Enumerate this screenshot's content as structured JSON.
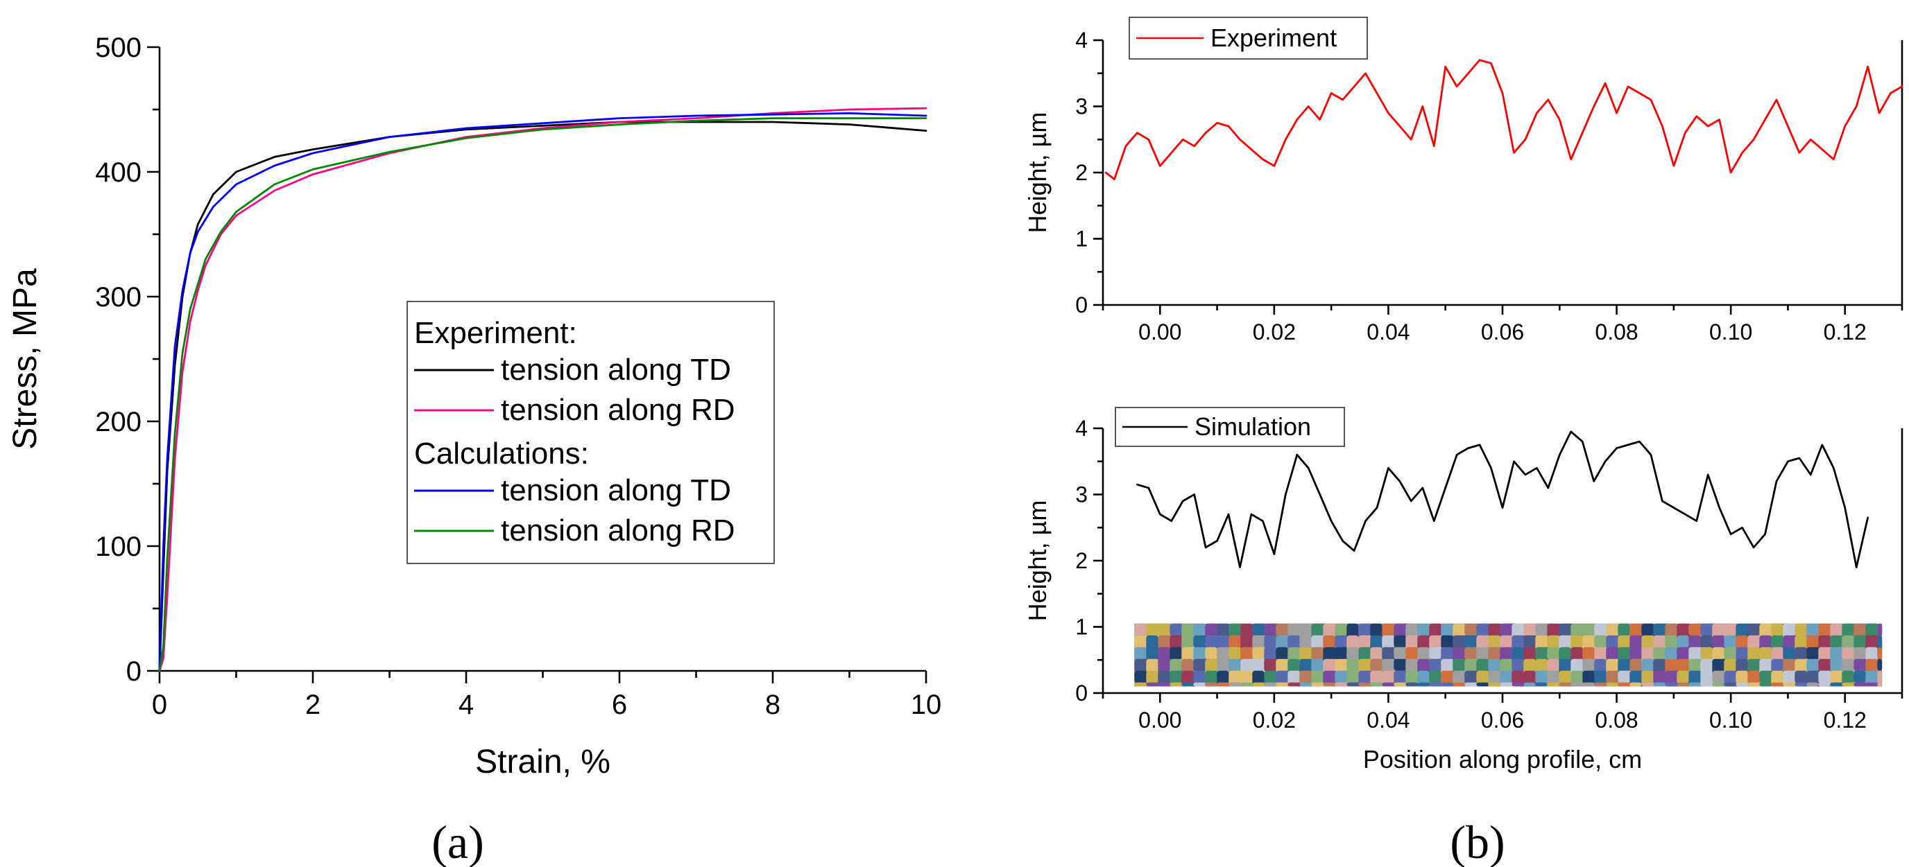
{
  "chart_data": [
    {
      "type": "line",
      "panel_label": "(a)",
      "xlabel": "Strain, %",
      "ylabel": "Stress, MPa",
      "xlim": [
        0,
        10
      ],
      "ylim": [
        0,
        500
      ],
      "xticks": [
        "0",
        "2",
        "4",
        "6",
        "8",
        "10"
      ],
      "yticks": [
        "0",
        "100",
        "200",
        "300",
        "400",
        "500"
      ],
      "legend": {
        "placement": "center-right",
        "groups": [
          {
            "heading": "Experiment:",
            "entries": [
              "tension along TD",
              "tension along RD"
            ]
          },
          {
            "heading": "Calculations:",
            "entries": [
              "tension along TD",
              "tension along RD"
            ]
          }
        ]
      },
      "series": [
        {
          "name": "Experiment: tension along TD",
          "color": "#000000",
          "x": [
            0,
            0.05,
            0.1,
            0.2,
            0.3,
            0.4,
            0.5,
            0.7,
            1.0,
            1.5,
            2,
            3,
            4,
            5,
            6,
            7,
            8,
            9,
            10
          ],
          "y": [
            0,
            80,
            160,
            245,
            300,
            335,
            358,
            382,
            400,
            412,
            418,
            428,
            434,
            437,
            440,
            440,
            440,
            438,
            433
          ]
        },
        {
          "name": "Experiment: tension along RD",
          "color": "#ff0088",
          "x": [
            0,
            0.05,
            0.1,
            0.2,
            0.3,
            0.4,
            0.5,
            0.6,
            0.8,
            1.0,
            1.5,
            2,
            3,
            4,
            5,
            6,
            7,
            8,
            9,
            10
          ],
          "y": [
            0,
            10,
            60,
            170,
            240,
            280,
            305,
            325,
            350,
            365,
            385,
            398,
            415,
            428,
            435,
            440,
            443,
            447,
            450,
            451
          ]
        },
        {
          "name": "Calculations: tension along TD",
          "color": "#0000ff",
          "x": [
            0,
            0.05,
            0.1,
            0.2,
            0.3,
            0.4,
            0.5,
            0.7,
            1.0,
            1.5,
            2,
            3,
            4,
            5,
            6,
            7,
            8,
            9,
            10
          ],
          "y": [
            0,
            100,
            170,
            260,
            305,
            335,
            352,
            372,
            390,
            405,
            415,
            428,
            435,
            439,
            443,
            445,
            446,
            447,
            445
          ]
        },
        {
          "name": "Calculations: tension along RD",
          "color": "#008800",
          "x": [
            0,
            0.05,
            0.1,
            0.2,
            0.3,
            0.4,
            0.5,
            0.6,
            0.8,
            1.0,
            1.5,
            2,
            3,
            4,
            5,
            6,
            7,
            8,
            9,
            10
          ],
          "y": [
            0,
            20,
            90,
            190,
            255,
            290,
            310,
            330,
            352,
            368,
            390,
            402,
            416,
            427,
            434,
            438,
            441,
            443,
            443,
            443
          ]
        }
      ]
    },
    {
      "type": "line",
      "panel_label": "(b)",
      "xlabel": "",
      "ylabel": "Height, µm",
      "xlim": [
        -0.01,
        0.13
      ],
      "ylim": [
        0,
        4
      ],
      "xticks": [
        "0.00",
        "0.02",
        "0.04",
        "0.06",
        "0.08",
        "0.10",
        "0.12"
      ],
      "yticks": [
        "0",
        "1",
        "2",
        "3",
        "4"
      ],
      "legend": {
        "placement": "top-left",
        "entries": [
          "Experiment"
        ]
      },
      "series": [
        {
          "name": "Experiment",
          "color": "#ff0000",
          "x": [
            -0.0095,
            -0.008,
            -0.006,
            -0.004,
            -0.002,
            0.0,
            0.002,
            0.004,
            0.006,
            0.008,
            0.01,
            0.012,
            0.014,
            0.016,
            0.018,
            0.02,
            0.022,
            0.024,
            0.026,
            0.028,
            0.03,
            0.032,
            0.034,
            0.036,
            0.038,
            0.04,
            0.042,
            0.044,
            0.046,
            0.048,
            0.05,
            0.052,
            0.054,
            0.056,
            0.058,
            0.06,
            0.062,
            0.064,
            0.066,
            0.068,
            0.07,
            0.072,
            0.074,
            0.076,
            0.078,
            0.08,
            0.082,
            0.084,
            0.086,
            0.088,
            0.09,
            0.092,
            0.094,
            0.096,
            0.098,
            0.1,
            0.102,
            0.104,
            0.106,
            0.108,
            0.11,
            0.112,
            0.114,
            0.116,
            0.118,
            0.12,
            0.122,
            0.124,
            0.126,
            0.128,
            0.13
          ],
          "y": [
            2.0,
            1.9,
            2.4,
            2.6,
            2.5,
            2.1,
            2.3,
            2.5,
            2.4,
            2.6,
            2.75,
            2.7,
            2.5,
            2.35,
            2.2,
            2.1,
            2.5,
            2.8,
            3.0,
            2.8,
            3.2,
            3.1,
            3.3,
            3.5,
            3.2,
            2.9,
            2.7,
            2.5,
            3.0,
            2.4,
            3.6,
            3.3,
            3.5,
            3.7,
            3.65,
            3.2,
            2.3,
            2.5,
            2.9,
            3.1,
            2.8,
            2.2,
            2.6,
            3.0,
            3.35,
            2.9,
            3.3,
            3.2,
            3.1,
            2.7,
            2.1,
            2.6,
            2.85,
            2.7,
            2.8,
            2.0,
            2.3,
            2.5,
            2.8,
            3.1,
            2.7,
            2.3,
            2.5,
            2.35,
            2.2,
            2.7,
            3.0,
            3.6,
            2.9,
            3.2,
            3.3
          ]
        }
      ]
    },
    {
      "type": "line",
      "panel_label": "",
      "xlabel": "Position along profile, cm",
      "ylabel": "Height, µm",
      "xlim": [
        -0.01,
        0.13
      ],
      "ylim": [
        0,
        4
      ],
      "xticks": [
        "0.00",
        "0.02",
        "0.04",
        "0.06",
        "0.08",
        "0.10",
        "0.12"
      ],
      "yticks": [
        "0",
        "1",
        "2",
        "3",
        "4"
      ],
      "legend": {
        "placement": "top-left",
        "entries": [
          "Simulation"
        ]
      },
      "series": [
        {
          "name": "Simulation",
          "color": "#000000",
          "x": [
            -0.004,
            -0.002,
            0.0,
            0.002,
            0.004,
            0.006,
            0.008,
            0.01,
            0.012,
            0.014,
            0.016,
            0.018,
            0.02,
            0.022,
            0.024,
            0.026,
            0.028,
            0.03,
            0.032,
            0.034,
            0.036,
            0.038,
            0.04,
            0.042,
            0.044,
            0.046,
            0.048,
            0.05,
            0.052,
            0.054,
            0.056,
            0.058,
            0.06,
            0.062,
            0.064,
            0.066,
            0.068,
            0.07,
            0.072,
            0.074,
            0.076,
            0.078,
            0.08,
            0.082,
            0.084,
            0.086,
            0.088,
            0.09,
            0.092,
            0.094,
            0.096,
            0.098,
            0.1,
            0.102,
            0.104,
            0.106,
            0.108,
            0.11,
            0.112,
            0.114,
            0.116,
            0.118,
            0.12,
            0.122,
            0.124
          ],
          "y": [
            3.15,
            3.1,
            2.7,
            2.6,
            2.9,
            3.0,
            2.2,
            2.3,
            2.7,
            1.9,
            2.7,
            2.6,
            2.1,
            3.0,
            3.6,
            3.4,
            3.0,
            2.6,
            2.3,
            2.15,
            2.6,
            2.8,
            3.4,
            3.2,
            2.9,
            3.1,
            2.6,
            3.1,
            3.6,
            3.7,
            3.75,
            3.4,
            2.8,
            3.5,
            3.3,
            3.4,
            3.1,
            3.6,
            3.95,
            3.8,
            3.2,
            3.5,
            3.7,
            3.75,
            3.8,
            3.6,
            2.9,
            2.8,
            2.7,
            2.6,
            3.3,
            2.8,
            2.4,
            2.5,
            2.2,
            2.4,
            3.2,
            3.5,
            3.55,
            3.3,
            3.75,
            3.4,
            2.8,
            1.9,
            2.65
          ]
        }
      ],
      "inset": {
        "label": "grain-structure-map",
        "grain_colors": [
          "#5b6bb0",
          "#d9a6a0",
          "#c9b24a",
          "#7a4aa0",
          "#3c8a6a",
          "#b87a5a",
          "#a0a0a0",
          "#1f3f6a",
          "#e0c070",
          "#6aa0c0",
          "#9a3a5a",
          "#c0c8d8",
          "#4a5a8a",
          "#8ab07a",
          "#d07040",
          "#2a6a9a"
        ]
      }
    }
  ]
}
